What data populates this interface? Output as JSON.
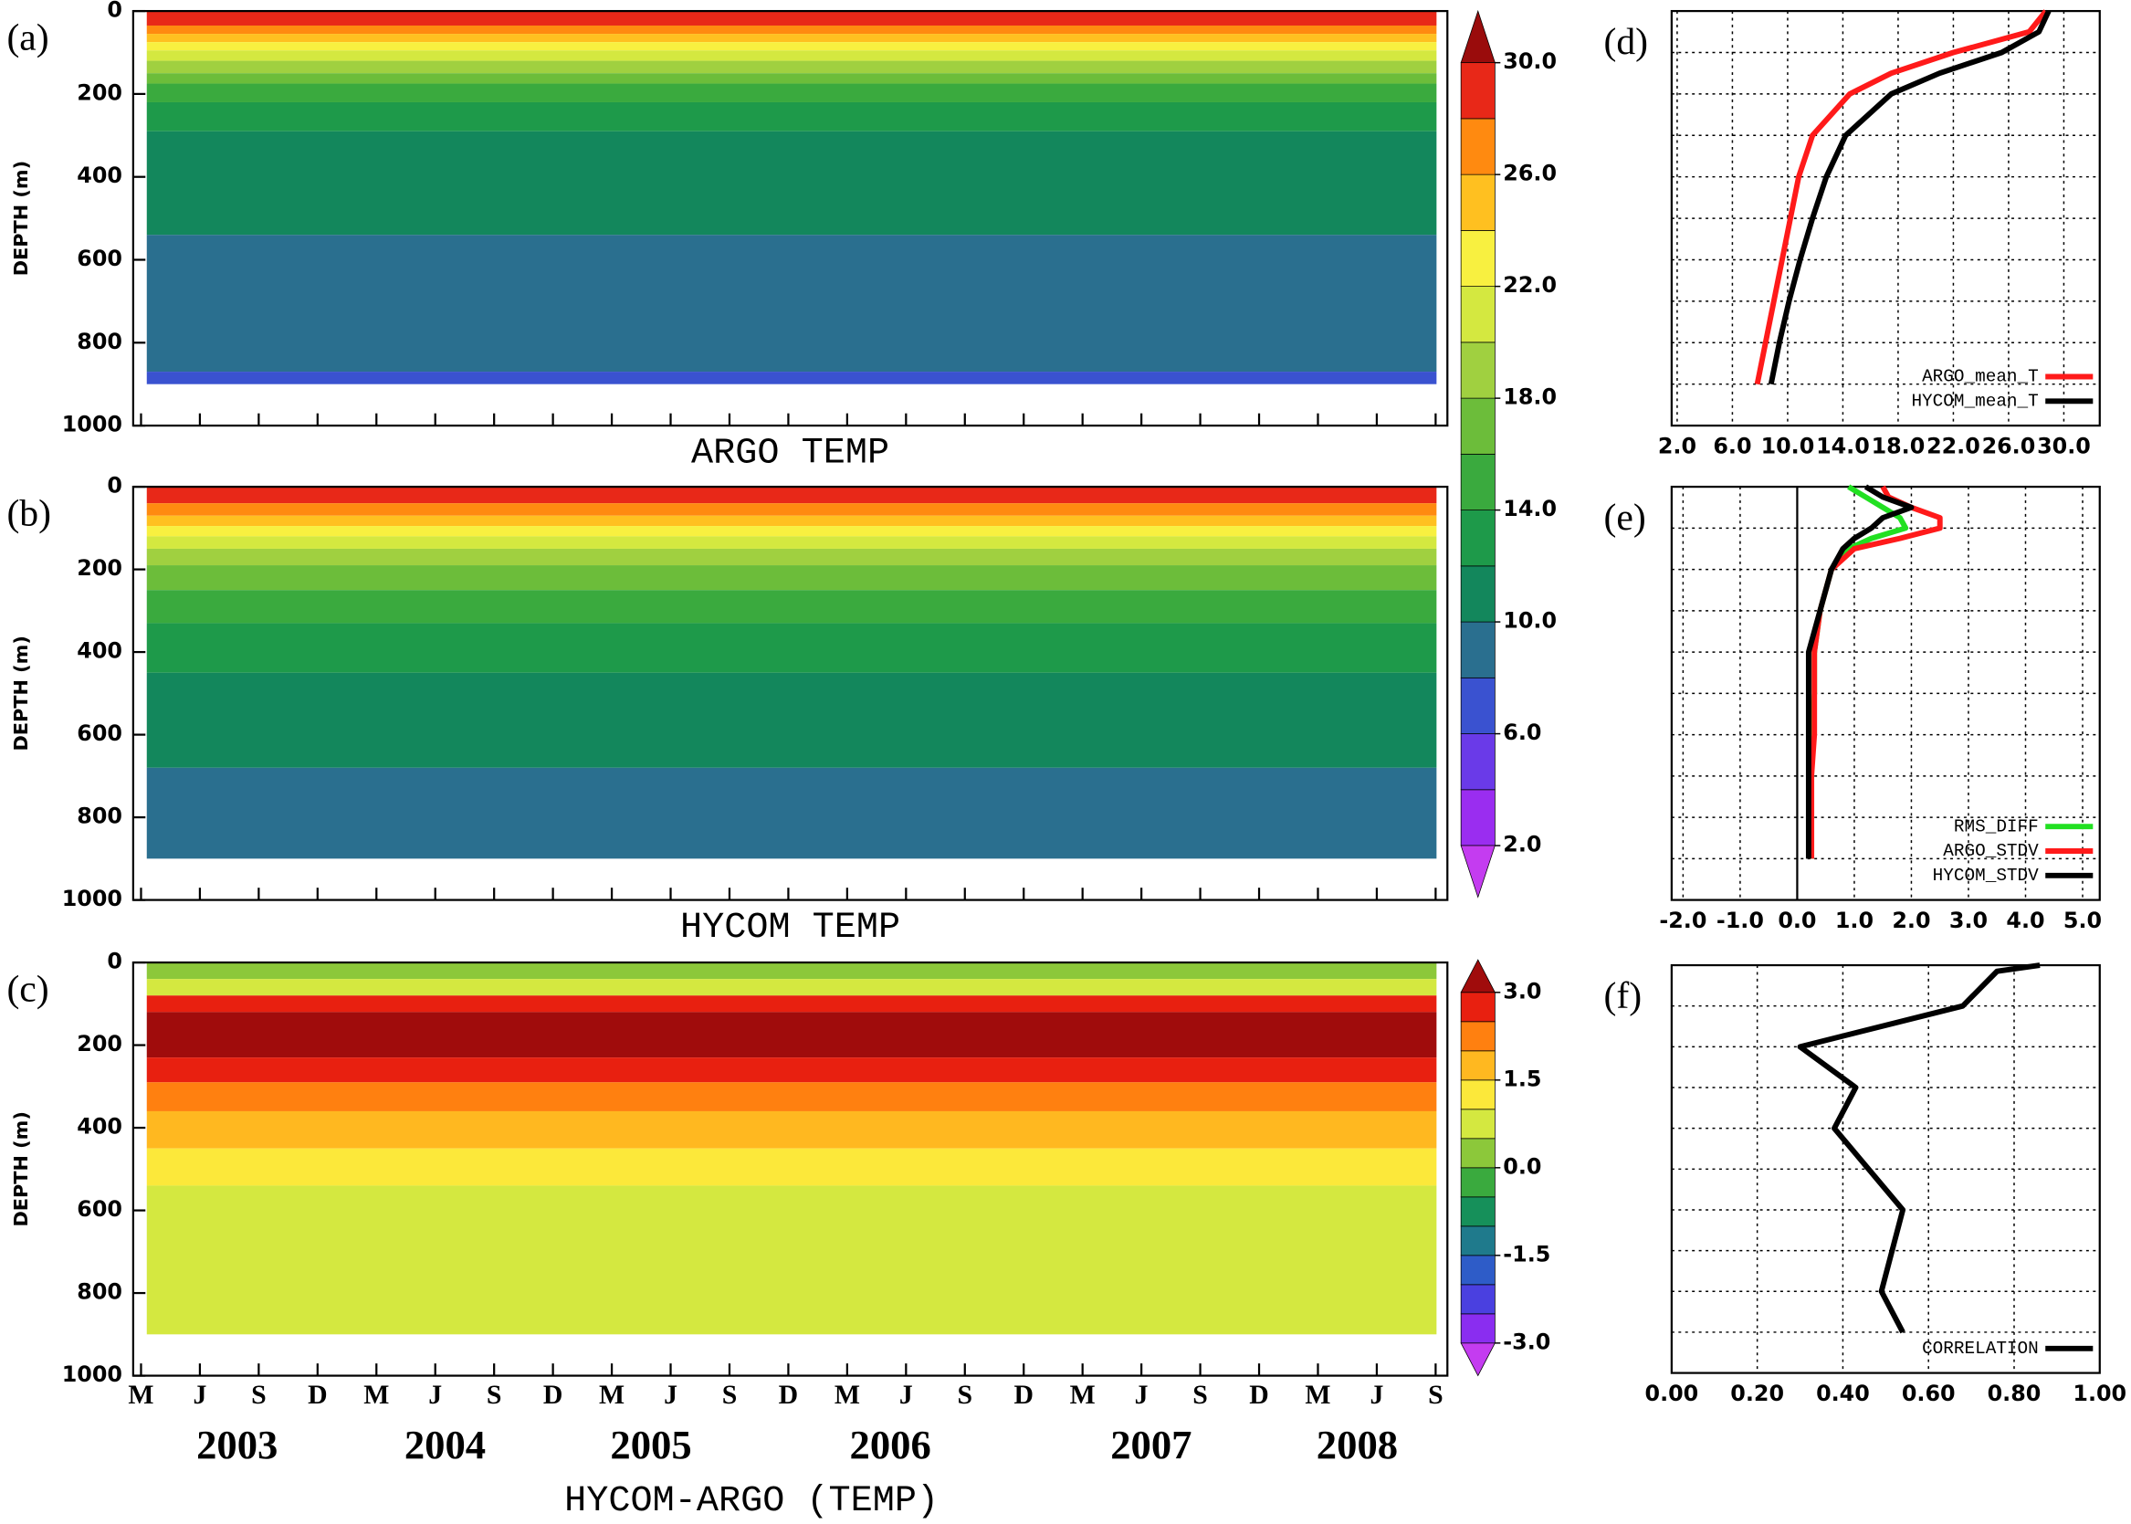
{
  "chart_data": [
    {
      "type": "contour",
      "panel_label": "(a)",
      "title": "ARGO TEMP",
      "ylabel": "DEPTH (m)",
      "xlim": [
        -0.4,
        66.6
      ],
      "xticks": [
        0,
        3,
        6,
        9,
        12,
        15,
        18,
        21,
        24,
        27,
        30,
        33,
        36,
        39,
        42,
        45,
        48,
        51,
        54,
        57,
        60,
        63,
        66
      ],
      "show_xtick_labels": false,
      "ylim": [
        0,
        1000
      ],
      "yticks": [
        0,
        200,
        400,
        600,
        800,
        1000
      ],
      "max_depth": 900,
      "layers": [
        {
          "value": 28,
          "depth": 0
        },
        {
          "value": 26,
          "depth": 35
        },
        {
          "value": 24,
          "depth": 55
        },
        {
          "value": 22,
          "depth": 75
        },
        {
          "value": 20,
          "depth": 95
        },
        {
          "value": 18,
          "depth": 120
        },
        {
          "value": 16,
          "depth": 150
        },
        {
          "value": 14,
          "depth": 175
        },
        {
          "value": 12,
          "depth": 220
        },
        {
          "value": 10,
          "depth": 290
        },
        {
          "value": 8,
          "depth": 540
        },
        {
          "value": 6,
          "depth": 870
        }
      ],
      "colorbar": {
        "levels": [
          2,
          4,
          6,
          8,
          10,
          12,
          14,
          16,
          18,
          20,
          22,
          24,
          26,
          28,
          30
        ],
        "colors": [
          "#c43cf0",
          "#9a2df0",
          "#6a3ae8",
          "#3a52d0",
          "#2a6f8f",
          "#13875c",
          "#1e9a4a",
          "#3aaa3e",
          "#6cbd3a",
          "#a0d040",
          "#d4e840",
          "#f8f040",
          "#ffc020",
          "#ff8a10",
          "#e82818",
          "#9a0c0c"
        ],
        "ticks": [
          {
            "value": 2,
            "label": "2.0"
          },
          {
            "value": 6,
            "label": "6.0"
          },
          {
            "value": 10,
            "label": "10.0"
          },
          {
            "value": 14,
            "label": "14.0"
          },
          {
            "value": 18,
            "label": "18.0"
          },
          {
            "value": 22,
            "label": "22.0"
          },
          {
            "value": 26,
            "label": "26.0"
          },
          {
            "value": 30,
            "label": "30.0"
          }
        ]
      }
    },
    {
      "type": "contour",
      "panel_label": "(b)",
      "title": "HYCOM TEMP",
      "ylabel": "DEPTH (m)",
      "xlim": [
        -0.4,
        66.6
      ],
      "xticks": [
        0,
        3,
        6,
        9,
        12,
        15,
        18,
        21,
        24,
        27,
        30,
        33,
        36,
        39,
        42,
        45,
        48,
        51,
        54,
        57,
        60,
        63,
        66
      ],
      "show_xtick_labels": false,
      "ylim": [
        0,
        1000
      ],
      "yticks": [
        0,
        200,
        400,
        600,
        800,
        1000
      ],
      "max_depth": 900,
      "layers": [
        {
          "value": 28,
          "depth": 0
        },
        {
          "value": 26,
          "depth": 40
        },
        {
          "value": 24,
          "depth": 70
        },
        {
          "value": 22,
          "depth": 95
        },
        {
          "value": 20,
          "depth": 120
        },
        {
          "value": 18,
          "depth": 150
        },
        {
          "value": 16,
          "depth": 190
        },
        {
          "value": 14,
          "depth": 250
        },
        {
          "value": 12,
          "depth": 330
        },
        {
          "value": 10,
          "depth": 450
        },
        {
          "value": 8,
          "depth": 680
        }
      ]
    },
    {
      "type": "contour",
      "panel_label": "(c)",
      "title": "HYCOM-ARGO (TEMP)",
      "ylabel": "DEPTH (m)",
      "xlim": [
        -0.4,
        66.6
      ],
      "show_xtick_labels": true,
      "xticks": [
        {
          "value": 0,
          "label": "M"
        },
        {
          "value": 3,
          "label": "J"
        },
        {
          "value": 6,
          "label": "S"
        },
        {
          "value": 9,
          "label": "D"
        },
        {
          "value": 12,
          "label": "M"
        },
        {
          "value": 15,
          "label": "J"
        },
        {
          "value": 18,
          "label": "S"
        },
        {
          "value": 21,
          "label": "D"
        },
        {
          "value": 24,
          "label": "M"
        },
        {
          "value": 27,
          "label": "J"
        },
        {
          "value": 30,
          "label": "S"
        },
        {
          "value": 33,
          "label": "D"
        },
        {
          "value": 36,
          "label": "M"
        },
        {
          "value": 39,
          "label": "J"
        },
        {
          "value": 42,
          "label": "S"
        },
        {
          "value": 45,
          "label": "D"
        },
        {
          "value": 48,
          "label": "M"
        },
        {
          "value": 51,
          "label": "J"
        },
        {
          "value": 54,
          "label": "S"
        },
        {
          "value": 57,
          "label": "D"
        },
        {
          "value": 60,
          "label": "M"
        },
        {
          "value": 63,
          "label": "J"
        },
        {
          "value": 66,
          "label": "S"
        }
      ],
      "year_labels": [
        {
          "value": 4.9,
          "label": "2003"
        },
        {
          "value": 15.5,
          "label": "2004"
        },
        {
          "value": 26,
          "label": "2005"
        },
        {
          "value": 38.2,
          "label": "2006"
        },
        {
          "value": 51.5,
          "label": "2007"
        },
        {
          "value": 62,
          "label": "2008"
        }
      ],
      "ylim": [
        0,
        1000
      ],
      "yticks": [
        0,
        200,
        400,
        600,
        800,
        1000
      ],
      "max_depth": 900,
      "layers": [
        {
          "value": 0,
          "depth": 0
        },
        {
          "value": 0.5,
          "depth": 40
        },
        {
          "value": 2.5,
          "depth": 80
        },
        {
          "value": 3,
          "depth": 120
        },
        {
          "value": 2.5,
          "depth": 230
        },
        {
          "value": 2,
          "depth": 290
        },
        {
          "value": 1.5,
          "depth": 360
        },
        {
          "value": 1,
          "depth": 450
        },
        {
          "value": 0.5,
          "depth": 540
        }
      ],
      "colorbar": {
        "levels": [
          -3,
          -2.5,
          -2,
          -1.5,
          -1,
          -0.5,
          0,
          0.5,
          1,
          1.5,
          2,
          2.5,
          3
        ],
        "colors": [
          "#c43cf0",
          "#8a2df0",
          "#4a40e0",
          "#2e5cc8",
          "#1f7a8c",
          "#16905a",
          "#3aaa3e",
          "#8cc83a",
          "#d4e840",
          "#fce83a",
          "#ffb820",
          "#ff8010",
          "#e82010",
          "#a00c0c"
        ],
        "ticks": [
          {
            "value": 3,
            "label": "3.0"
          },
          {
            "value": 1.5,
            "label": "1.5"
          },
          {
            "value": 0,
            "label": "0.0"
          },
          {
            "value": -1.5,
            "label": "-1.5"
          },
          {
            "value": -3,
            "label": "-3.0"
          }
        ]
      }
    },
    {
      "type": "line",
      "panel_label": "(d)",
      "grid": true,
      "legend": "lower right",
      "xlim": [
        1.6,
        32.6
      ],
      "xticks": [
        {
          "value": 2,
          "label": "2.0"
        },
        {
          "value": 6,
          "label": "6.0"
        },
        {
          "value": 10,
          "label": "10.0"
        },
        {
          "value": 14,
          "label": "14.0"
        },
        {
          "value": 18,
          "label": "18.0"
        },
        {
          "value": 22,
          "label": "22.0"
        },
        {
          "value": 26,
          "label": "26.0"
        },
        {
          "value": 30,
          "label": "30.0"
        }
      ],
      "ylim": [
        0,
        1000
      ],
      "yticks": [
        0,
        100,
        200,
        300,
        400,
        500,
        600,
        700,
        800,
        900,
        1000
      ],
      "depths": [
        0,
        50,
        100,
        150,
        200,
        300,
        400,
        500,
        600,
        700,
        800,
        900
      ],
      "series": [
        {
          "name": "ARGO_mean_T",
          "color": "#ff1a1a",
          "values": [
            28.7,
            27.5,
            22,
            17.5,
            14.5,
            11.8,
            10.8,
            10.2,
            9.6,
            9.0,
            8.4,
            7.8
          ]
        },
        {
          "name": "HYCOM_mean_T",
          "color": "#000000",
          "values": [
            28.9,
            28.2,
            25.5,
            21,
            17.5,
            14.2,
            12.8,
            11.8,
            10.9,
            10.1,
            9.4,
            8.8
          ]
        }
      ]
    },
    {
      "type": "line",
      "panel_label": "(e)",
      "grid": true,
      "legend": "lower right",
      "vline": 0,
      "xlim": [
        -2.2,
        5.3
      ],
      "xticks": [
        {
          "value": -2,
          "label": "-2.0"
        },
        {
          "value": -1,
          "label": "-1.0"
        },
        {
          "value": 0,
          "label": "0.0"
        },
        {
          "value": 1,
          "label": "1.0"
        },
        {
          "value": 2,
          "label": "2.0"
        },
        {
          "value": 3,
          "label": "3.0"
        },
        {
          "value": 4,
          "label": "4.0"
        },
        {
          "value": 5,
          "label": "5.0"
        }
      ],
      "ylim": [
        0,
        1000
      ],
      "yticks": [
        0,
        100,
        200,
        300,
        400,
        500,
        600,
        700,
        800,
        900,
        1000
      ],
      "depths": [
        0,
        25,
        50,
        75,
        100,
        125,
        150,
        200,
        300,
        400,
        500,
        600,
        700,
        800,
        900
      ],
      "series": [
        {
          "name": "RMS_DIFF",
          "color": "#22e022",
          "values": [
            0.9,
            1.2,
            1.5,
            1.8,
            1.9,
            1.3,
            0.9,
            0.6,
            0.4,
            0.3,
            0.3,
            0.25,
            0.25,
            0.25,
            0.25
          ]
        },
        {
          "name": "ARGO_STDV",
          "color": "#ff1a1a",
          "values": [
            1.5,
            1.6,
            2.0,
            2.5,
            2.5,
            1.8,
            1.0,
            0.6,
            0.4,
            0.3,
            0.3,
            0.3,
            0.25,
            0.25,
            0.25
          ]
        },
        {
          "name": "HYCOM_STDV",
          "color": "#000000",
          "values": [
            1.2,
            1.5,
            2.0,
            1.5,
            1.3,
            1.0,
            0.8,
            0.6,
            0.4,
            0.2,
            0.2,
            0.2,
            0.2,
            0.2,
            0.2
          ]
        }
      ]
    },
    {
      "type": "line",
      "panel_label": "(f)",
      "grid": true,
      "legend": "lower right",
      "xlim": [
        0,
        1
      ],
      "xticks": [
        {
          "value": 0,
          "label": "0.00"
        },
        {
          "value": 0.2,
          "label": "0.20"
        },
        {
          "value": 0.4,
          "label": "0.40"
        },
        {
          "value": 0.6,
          "label": "0.60"
        },
        {
          "value": 0.8,
          "label": "0.80"
        },
        {
          "value": 1,
          "label": "1.00"
        }
      ],
      "ylim": [
        0,
        1000
      ],
      "yticks": [
        0,
        100,
        200,
        300,
        400,
        500,
        600,
        700,
        800,
        900,
        1000
      ],
      "depths": [
        0,
        15,
        100,
        200,
        300,
        400,
        600,
        800,
        900
      ],
      "series": [
        {
          "name": "CORRELATION",
          "color": "#000000",
          "values": [
            0.86,
            0.76,
            0.68,
            0.3,
            0.43,
            0.38,
            0.54,
            0.49,
            0.54
          ]
        }
      ]
    }
  ]
}
